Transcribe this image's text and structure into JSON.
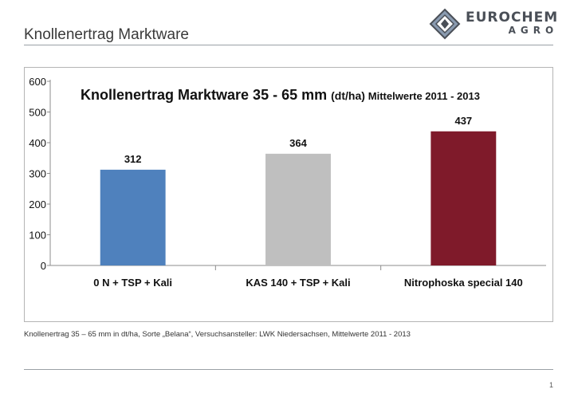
{
  "slide": {
    "title": "Knollenertrag Marktware",
    "caption": "Knollenertrag 35 – 65 mm in dt/ha, Sorte „Belana“, Versuchsansteller: LWK Niedersachsen, Mittelwerte 2011 - 2013",
    "page_number": "1"
  },
  "logo": {
    "line1": "EUROCHEM",
    "line2": "AGRO",
    "colors": {
      "dark": "#4a4f57",
      "light": "#8a9bb0"
    }
  },
  "chart_data": {
    "type": "bar",
    "title_main": "Knollenertrag Marktware 35 - 65 mm",
    "title_unit": "(dt/ha)",
    "title_suffix": "Mittelwerte 2011 - 2013",
    "categories": [
      "0 N + TSP + Kali",
      "KAS 140 + TSP + Kali",
      "Nitrophoska special 140"
    ],
    "values": [
      312,
      364,
      437
    ],
    "colors": [
      "#4f81bd",
      "#bfbfbf",
      "#7f1a2a"
    ],
    "ylim": [
      0,
      600
    ],
    "yticks": [
      0,
      100,
      200,
      300,
      400,
      500,
      600
    ],
    "grid": false,
    "legend": "none"
  }
}
